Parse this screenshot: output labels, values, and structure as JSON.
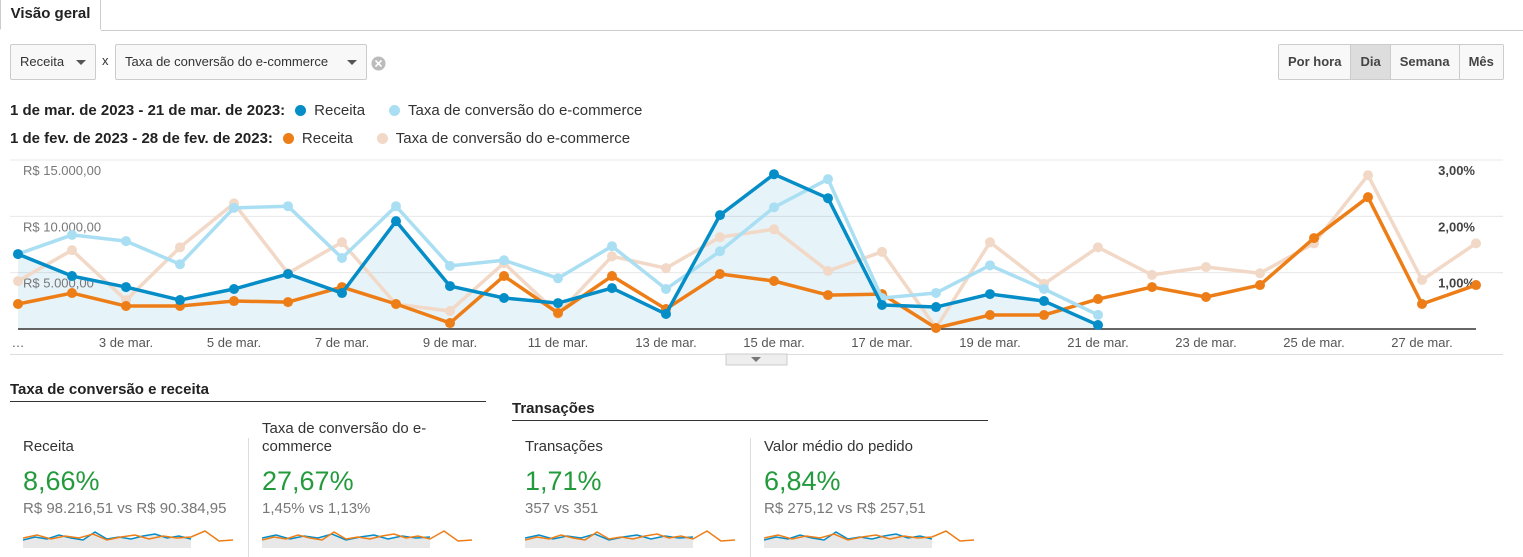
{
  "tab": "Visão geral",
  "controls": {
    "metric_1": "Receita",
    "separator": "x",
    "metric_2": "Taxa de conversão do e-commerce",
    "granularity": [
      "Por hora",
      "Dia",
      "Semana",
      "Mês"
    ],
    "selected": 1
  },
  "chart_data": {
    "type": "line",
    "periods": [
      "1 de mar. de 2023 - 21 de mar. de 2023:",
      "1 de fev. de 2023 - 28 de fev. de 2023:"
    ],
    "categories": [
      "…",
      null,
      "3 de mar.",
      null,
      "5 de mar.",
      null,
      "7 de mar.",
      null,
      "9 de mar.",
      null,
      "11 de mar.",
      null,
      "13 de mar.",
      null,
      "15 de mar.",
      null,
      "17 de mar.",
      null,
      "19 de mar.",
      null,
      "21 de mar.",
      null,
      "23 de mar.",
      null,
      "25 de mar.",
      null,
      "27 de mar.",
      null
    ],
    "series": [
      {
        "name": "Receita",
        "color": "#058dc7",
        "fill": true,
        "values": [
          6650,
          4700,
          3720,
          2570,
          3550,
          4880,
          3190,
          9570,
          3810,
          2750,
          2300,
          3630,
          1330,
          10110,
          13740,
          11610,
          2130,
          1950,
          3100,
          2480,
          350,
          null,
          null,
          null,
          null,
          null,
          null,
          null
        ]
      },
      {
        "name": "Taxa de conversão do e-commerce",
        "color": "#aadff3",
        "axis": "y2",
        "values": [
          1.33,
          1.67,
          1.56,
          1.15,
          2.15,
          2.18,
          1.26,
          2.18,
          1.12,
          1.22,
          0.9,
          1.47,
          0.71,
          1.38,
          2.16,
          2.66,
          0.55,
          0.64,
          1.13,
          0.71,
          0.25,
          null,
          null,
          null,
          null,
          null,
          null,
          null
        ]
      },
      {
        "name": "Receita",
        "color": "#ed7e17",
        "values": [
          2220,
          3190,
          2040,
          2040,
          2480,
          2390,
          3720,
          2220,
          530,
          4700,
          1420,
          4700,
          1770,
          4880,
          4260,
          3010,
          3100,
          90,
          1240,
          1240,
          2660,
          3720,
          2840,
          3900,
          8070,
          11700,
          2220,
          3900
        ]
      },
      {
        "name": "Taxa de conversão do e-commerce",
        "color": "#f2d8c6",
        "axis": "y2",
        "values": [
          0.85,
          1.4,
          0.51,
          1.45,
          2.23,
          0.99,
          1.54,
          0.44,
          0.32,
          1.17,
          0.27,
          1.29,
          1.08,
          1.63,
          1.77,
          1.03,
          1.37,
          0.02,
          1.54,
          0.8,
          1.45,
          0.96,
          1.1,
          0.99,
          1.52,
          2.73,
          0.87,
          1.52
        ]
      }
    ],
    "ylim": [
      0,
      15000
    ],
    "yticks": [
      {
        "value": 5000,
        "label": "R$ 5.000,00"
      },
      {
        "value": 10000,
        "label": "R$ 10.000,00"
      },
      {
        "value": 15000,
        "label": "R$ 15.000,00"
      }
    ],
    "y2lim": [
      0,
      3
    ],
    "y2ticks": [
      {
        "value": 1,
        "label": "1,00%"
      },
      {
        "value": 2,
        "label": "2,00%"
      },
      {
        "value": 3,
        "label": "3,00%"
      }
    ],
    "grid": true
  },
  "scorecards": [
    {
      "title": "Taxa de conversão e receita",
      "cards": [
        {
          "label": "Receita",
          "change": "8,66%",
          "comparison": "R$ 98.216,51 vs R$ 90.384,95"
        },
        {
          "label": "Taxa de conversão do e-commerce",
          "change": "27,67%",
          "comparison": "1,45% vs 1,13%"
        }
      ]
    },
    {
      "title": "Transações",
      "cards": [
        {
          "label": "Transações",
          "change": "1,71%",
          "comparison": "357 vs 351"
        },
        {
          "label": "Valor médio do pedido",
          "change": "6,84%",
          "comparison": "R$ 275,12 vs R$ 257,51"
        }
      ]
    }
  ]
}
